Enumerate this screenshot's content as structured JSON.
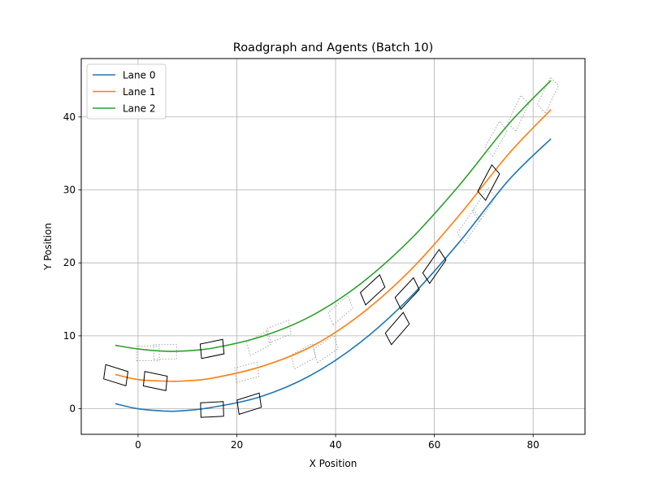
{
  "chart_data": {
    "type": "line",
    "title": "Roadgraph and Agents (Batch 10)",
    "xlabel": "X Position",
    "ylabel": "Y Position",
    "xlim": [
      -11.5,
      90.5
    ],
    "ylim": [
      -3.5,
      48.0
    ],
    "xticks": [
      0,
      20,
      40,
      60,
      80
    ],
    "yticks": [
      0,
      10,
      20,
      30,
      40
    ],
    "grid": true,
    "legend_position": "top-left",
    "series": [
      {
        "name": "Lane 0",
        "color": "#1f77b4",
        "x": [
          -4.6,
          0,
          5,
          8.4,
          15,
          25,
          35,
          45,
          55,
          65,
          75,
          83.6
        ],
        "y": [
          0.7,
          0.0,
          -0.3,
          -0.3,
          0.2,
          1.7,
          4.6,
          9.1,
          15.2,
          22.8,
          31.3,
          37.0
        ]
      },
      {
        "name": "Lane 1",
        "color": "#ff7f0e",
        "x": [
          -4.6,
          0,
          5,
          9.0,
          15,
          25,
          35,
          45,
          55,
          65,
          75,
          83.6
        ],
        "y": [
          4.7,
          4.0,
          3.8,
          3.8,
          4.2,
          5.8,
          8.5,
          12.9,
          18.9,
          26.5,
          34.9,
          41.0
        ]
      },
      {
        "name": "Lane 2",
        "color": "#2ca02c",
        "x": [
          -4.6,
          0,
          5,
          8.6,
          15,
          25,
          35,
          45,
          55,
          65,
          75,
          83.6
        ],
        "y": [
          8.7,
          8.2,
          7.9,
          7.9,
          8.3,
          9.9,
          12.7,
          17.1,
          23.1,
          30.6,
          39.0,
          45.0
        ]
      }
    ],
    "agents": [
      {
        "x": -4.5,
        "y": 4.6,
        "heading": -12
      },
      {
        "x": 3.5,
        "y": 3.8,
        "heading": -8
      },
      {
        "x": 15.0,
        "y": 8.2,
        "heading": 8
      },
      {
        "x": 15.0,
        "y": -0.1,
        "heading": 2
      },
      {
        "x": 22.5,
        "y": 0.7,
        "heading": 12
      },
      {
        "x": 47.5,
        "y": 16.3,
        "heading": 32
      },
      {
        "x": 52.5,
        "y": 11.0,
        "heading": 38
      },
      {
        "x": 54.5,
        "y": 15.8,
        "heading": 36
      },
      {
        "x": 60.0,
        "y": 19.5,
        "heading": 44
      },
      {
        "x": 71.0,
        "y": 31.0,
        "heading": 52
      }
    ],
    "ghost_agents": [
      {
        "x": 5.5,
        "y": 7.8,
        "heading": 0
      },
      {
        "x": 2.0,
        "y": 7.6,
        "heading": 0
      },
      {
        "x": 22.0,
        "y": 5.0,
        "heading": 10
      },
      {
        "x": 24.5,
        "y": 9.0,
        "heading": 20
      },
      {
        "x": 28.5,
        "y": 10.6,
        "heading": 15
      },
      {
        "x": 33.5,
        "y": 7.2,
        "heading": 20
      },
      {
        "x": 38.0,
        "y": 8.2,
        "heading": 25
      },
      {
        "x": 41.0,
        "y": 13.5,
        "heading": 30
      },
      {
        "x": 67.0,
        "y": 25.0,
        "heading": 45
      },
      {
        "x": 70.0,
        "y": 28.0,
        "heading": 45
      },
      {
        "x": 72.5,
        "y": 37.0,
        "heading": 50
      },
      {
        "x": 77.0,
        "y": 40.5,
        "heading": 55
      },
      {
        "x": 83.0,
        "y": 43.0,
        "heading": 55
      }
    ]
  }
}
